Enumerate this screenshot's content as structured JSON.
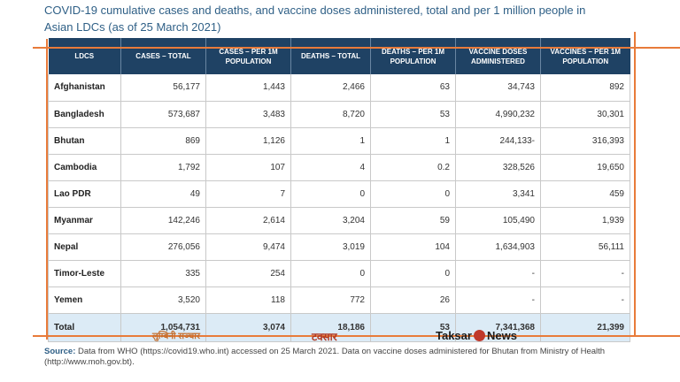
{
  "title": {
    "line1": "COVID-19 cumulative cases and deaths, and vaccine doses administered, total and per 1 million people in",
    "line2": "Asian LDCs (as of 25 March 2021)"
  },
  "headers": [
    "LDCS",
    "CASES – TOTAL",
    "CASES – PER 1M POPULATION",
    "DEATHS – TOTAL",
    "DEATHS – PER 1M POPULATION",
    "VACCINE DOSES ADMINISTERED",
    "VACCINES – PER 1M POPULATION"
  ],
  "rows": [
    [
      "Afghanistan",
      "56,177",
      "1,443",
      "2,466",
      "63",
      "34,743",
      "892"
    ],
    [
      "Bangladesh",
      "573,687",
      "3,483",
      "8,720",
      "53",
      "4,990,232",
      "30,301"
    ],
    [
      "Bhutan",
      "869",
      "1,126",
      "1",
      "1",
      "244,133-",
      "316,393"
    ],
    [
      "Cambodia",
      "1,792",
      "107",
      "4",
      "0.2",
      "328,526",
      "19,650"
    ],
    [
      "Lao PDR",
      "49",
      "7",
      "0",
      "0",
      "3,341",
      "459"
    ],
    [
      "Myanmar",
      "142,246",
      "2,614",
      "3,204",
      "59",
      "105,490",
      "1,939"
    ],
    [
      "Nepal",
      "276,056",
      "9,474",
      "3,019",
      "104",
      "1,634,903",
      "56,111"
    ],
    [
      "Timor-Leste",
      "335",
      "254",
      "0",
      "0",
      "-",
      "-"
    ],
    [
      "Yemen",
      "3,520",
      "118",
      "772",
      "26",
      "-",
      "-"
    ]
  ],
  "total": [
    "Total",
    "1,054,731",
    "3,074",
    "18,186",
    "53",
    "7,341,368",
    "21,399"
  ],
  "watermarks": {
    "left": "लुम्बिनी सञ्चार",
    "middle": "टक्सार",
    "right_a": "Taksar",
    "right_b": "News"
  },
  "source": {
    "label": "Source:",
    "text": " Data from WHO (https://covid19.who.int) accessed on 25 March 2021. Data on vaccine doses administered for Bhutan from Ministry of Health (http://www.moh.gov.bt)."
  }
}
